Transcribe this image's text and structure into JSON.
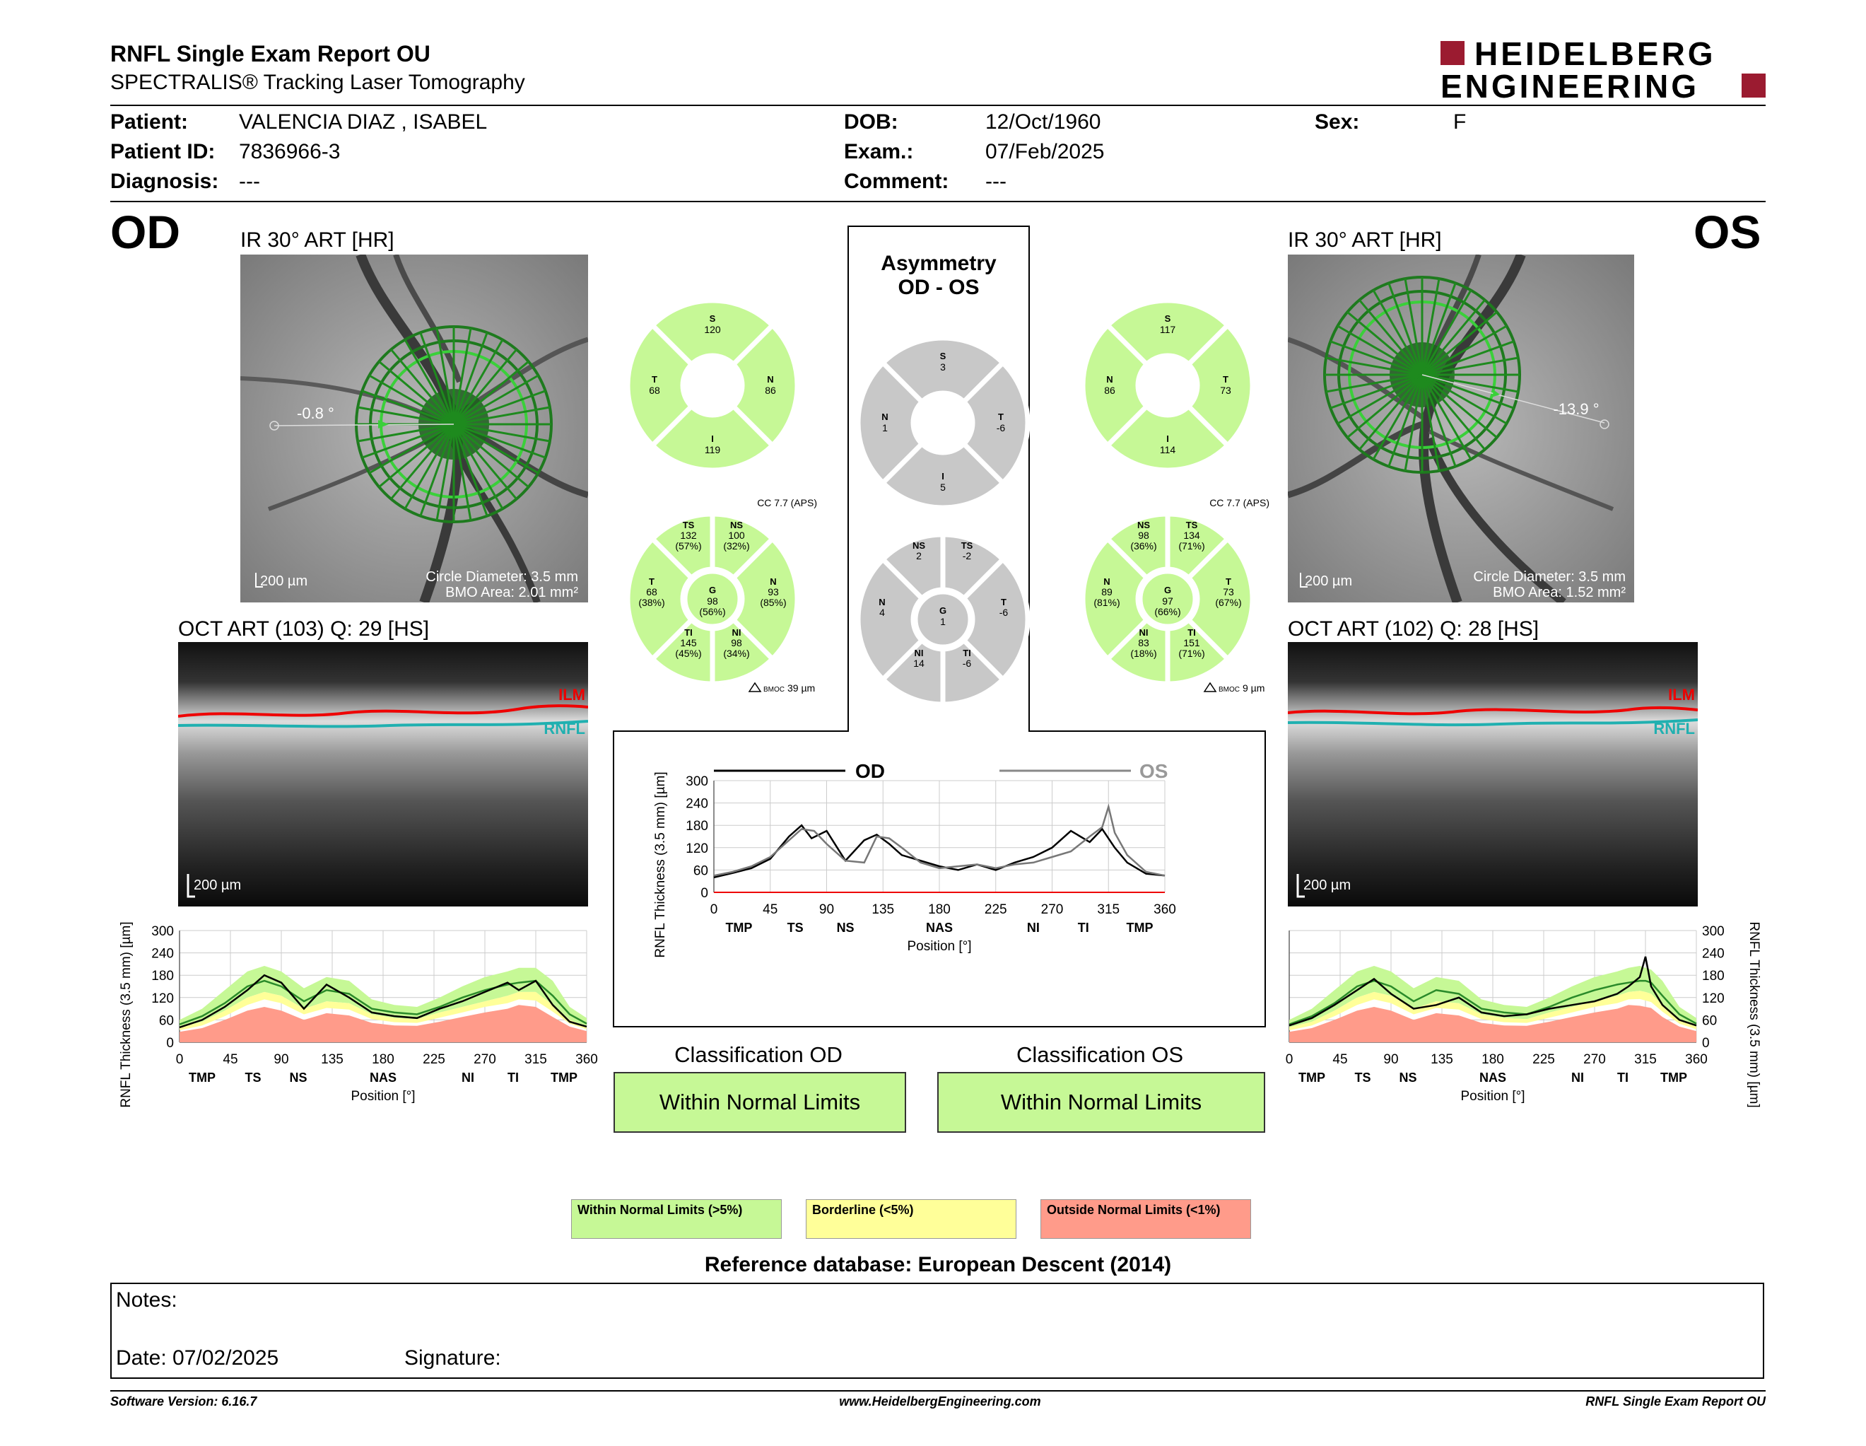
{
  "header": {
    "title": "RNFL Single Exam Report OU",
    "subtitle": "SPECTRALIS® Tracking Laser Tomography",
    "logo_line1": "HEIDELBERG",
    "logo_line2": "ENGINEERING",
    "brand_color": "#9b1b30"
  },
  "patient": {
    "name_label": "Patient:",
    "name": "VALENCIA DIAZ , ISABEL",
    "id_label": "Patient ID:",
    "id": "7836966-3",
    "diagnosis_label": "Diagnosis:",
    "diagnosis": "---",
    "dob_label": "DOB:",
    "dob": "12/Oct/1960",
    "exam_label": "Exam.:",
    "exam": "07/Feb/2025",
    "comment_label": "Comment:",
    "comment": "---",
    "sex_label": "Sex:",
    "sex": "F"
  },
  "od": {
    "eye": "OD",
    "ir_title": "IR 30° ART [HR]",
    "angle": "-0.8 °",
    "scale": "200 µm",
    "circle_diameter": "Circle Diameter: 3.5 mm",
    "bmo_area": "BMO Area: 2.01 mm²",
    "oct_title": "OCT ART (103) Q: 29 [HS]",
    "oct_scale": "200 µm",
    "ilm": "ILM",
    "rnfl": "RNFL",
    "classification_label": "Classification OD",
    "classification": "Within Normal Limits",
    "cc": "CC 7.7 (APS)",
    "bmoc": "39 µm",
    "quad": {
      "S": {
        "label": "S",
        "value": "120"
      },
      "T": {
        "label": "T",
        "value": "68"
      },
      "N": {
        "label": "N",
        "value": "86"
      },
      "I": {
        "label": "I",
        "value": "119"
      }
    },
    "sect": {
      "TS": {
        "label": "TS",
        "value": "132",
        "pct": "(57%)"
      },
      "NS": {
        "label": "NS",
        "value": "100",
        "pct": "(32%)"
      },
      "T": {
        "label": "T",
        "value": "68",
        "pct": "(38%)"
      },
      "G": {
        "label": "G",
        "value": "98",
        "pct": "(56%)"
      },
      "N": {
        "label": "N",
        "value": "93",
        "pct": "(85%)"
      },
      "TI": {
        "label": "TI",
        "value": "145",
        "pct": "(45%)"
      },
      "NI": {
        "label": "NI",
        "value": "98",
        "pct": "(34%)"
      }
    }
  },
  "os": {
    "eye": "OS",
    "ir_title": "IR 30° ART [HR]",
    "angle": "-13.9 °",
    "scale": "200 µm",
    "circle_diameter": "Circle Diameter: 3.5 mm",
    "bmo_area": "BMO Area: 1.52 mm²",
    "oct_title": "OCT ART (102) Q: 28 [HS]",
    "oct_scale": "200 µm",
    "ilm": "ILM",
    "rnfl": "RNFL",
    "classification_label": "Classification OS",
    "classification": "Within Normal Limits",
    "cc": "CC 7.7 (APS)",
    "bmoc": "9 µm",
    "quad": {
      "S": {
        "label": "S",
        "value": "117"
      },
      "N": {
        "label": "N",
        "value": "86"
      },
      "T": {
        "label": "T",
        "value": "73"
      },
      "I": {
        "label": "I",
        "value": "114"
      }
    },
    "sect": {
      "NS": {
        "label": "NS",
        "value": "98",
        "pct": "(36%)"
      },
      "TS": {
        "label": "TS",
        "value": "134",
        "pct": "(71%)"
      },
      "N": {
        "label": "N",
        "value": "89",
        "pct": "(81%)"
      },
      "G": {
        "label": "G",
        "value": "97",
        "pct": "(66%)"
      },
      "T": {
        "label": "T",
        "value": "73",
        "pct": "(67%)"
      },
      "NI": {
        "label": "NI",
        "value": "83",
        "pct": "(18%)"
      },
      "TI": {
        "label": "TI",
        "value": "151",
        "pct": "(71%)"
      }
    }
  },
  "asymmetry": {
    "title1": "Asymmetry",
    "title2": "OD - OS",
    "bmoc_prefix": "BMOC",
    "quad": {
      "S": {
        "label": "S",
        "value": "3"
      },
      "N": {
        "label": "N",
        "value": "1"
      },
      "T": {
        "label": "T",
        "value": "-6"
      },
      "I": {
        "label": "I",
        "value": "5"
      }
    },
    "sect": {
      "NS": {
        "label": "NS",
        "value": "2"
      },
      "TS": {
        "label": "TS",
        "value": "-2"
      },
      "N": {
        "label": "N",
        "value": "4"
      },
      "G": {
        "label": "G",
        "value": "1"
      },
      "T": {
        "label": "T",
        "value": "-6"
      },
      "NI": {
        "label": "NI",
        "value": "14"
      },
      "TI": {
        "label": "TI",
        "value": "-6"
      }
    }
  },
  "legend": {
    "normal": "Within Normal Limits (>5%)",
    "borderline": "Borderline (<5%)",
    "outside": "Outside Normal Limits (<1%)",
    "normal_color": "#c6f896",
    "borderline_color": "#ffff99",
    "outside_color": "#ff9b8a"
  },
  "reference": "Reference database: European Descent (2014)",
  "notes": {
    "label": "Notes:",
    "date": "Date: 07/02/2025",
    "signature": "Signature:"
  },
  "footer": {
    "version": "Software Version: 6.16.7",
    "url": "www.HeidelbergEngineering.com",
    "report": "RNFL Single Exam Report OU"
  },
  "chart_data": [
    {
      "type": "line",
      "name_key": "asymmetry",
      "xlabel": "Position [°]",
      "ylabel": "RNFL Thickness (3.5 mm) [µm]",
      "xticks": [
        0,
        45,
        90,
        135,
        180,
        225,
        270,
        315,
        360
      ],
      "yticks": [
        0,
        60,
        120,
        180,
        240,
        300
      ],
      "xlim": [
        0,
        360
      ],
      "ylim": [
        0,
        300
      ],
      "sector_labels": [
        "TMP",
        "TS",
        "NS",
        "NAS",
        "NI",
        "TI",
        "TMP"
      ],
      "sector_positions": [
        20,
        65,
        105,
        180,
        255,
        295,
        340
      ],
      "series": [
        {
          "name": "OD",
          "color": "#000000",
          "x": [
            0,
            15,
            30,
            45,
            60,
            70,
            78,
            90,
            105,
            120,
            130,
            140,
            150,
            165,
            180,
            195,
            210,
            225,
            240,
            255,
            270,
            285,
            300,
            310,
            320,
            330,
            345,
            360
          ],
          "y": [
            40,
            52,
            65,
            90,
            150,
            180,
            145,
            165,
            85,
            140,
            155,
            130,
            100,
            85,
            70,
            60,
            75,
            60,
            80,
            95,
            120,
            165,
            135,
            170,
            120,
            80,
            50,
            45
          ]
        },
        {
          "name": "OS",
          "color": "#777777",
          "x": [
            0,
            15,
            30,
            45,
            60,
            70,
            80,
            90,
            105,
            120,
            130,
            140,
            150,
            165,
            180,
            195,
            210,
            225,
            240,
            255,
            270,
            285,
            300,
            310,
            315,
            320,
            330,
            345,
            360
          ],
          "y": [
            45,
            55,
            70,
            95,
            140,
            170,
            165,
            130,
            85,
            80,
            150,
            145,
            120,
            80,
            65,
            70,
            75,
            65,
            75,
            80,
            95,
            110,
            150,
            175,
            230,
            160,
            100,
            55,
            45
          ]
        }
      ]
    },
    {
      "type": "area",
      "name_key": "od_profile",
      "xlabel": "Position [°]",
      "ylabel": "RNFL Thickness (3.5 mm) [µm]",
      "xticks": [
        0,
        45,
        90,
        135,
        180,
        225,
        270,
        315,
        360
      ],
      "yticks": [
        0,
        60,
        120,
        180,
        240,
        300
      ],
      "xlim": [
        0,
        360
      ],
      "ylim": [
        0,
        300
      ],
      "sector_labels": [
        "TMP",
        "TS",
        "NS",
        "NAS",
        "NI",
        "TI",
        "TMP"
      ],
      "sector_positions": [
        20,
        65,
        105,
        180,
        255,
        295,
        340
      ],
      "x": [
        0,
        20,
        40,
        60,
        75,
        90,
        110,
        130,
        150,
        170,
        190,
        210,
        230,
        250,
        270,
        290,
        300,
        315,
        330,
        345,
        360
      ],
      "normal_upper": [
        60,
        90,
        140,
        190,
        205,
        190,
        145,
        175,
        165,
        115,
        100,
        95,
        120,
        150,
        175,
        190,
        200,
        200,
        165,
        95,
        65
      ],
      "normal_lower": [
        40,
        55,
        85,
        120,
        135,
        125,
        90,
        110,
        105,
        75,
        65,
        62,
        80,
        95,
        110,
        125,
        135,
        135,
        100,
        60,
        42
      ],
      "border_lower": [
        32,
        45,
        70,
        100,
        115,
        105,
        75,
        92,
        88,
        62,
        54,
        52,
        66,
        80,
        95,
        105,
        115,
        112,
        82,
        50,
        35
      ],
      "outside_upper": [
        28,
        38,
        60,
        85,
        95,
        85,
        60,
        78,
        72,
        52,
        45,
        44,
        55,
        68,
        80,
        90,
        100,
        95,
        68,
        42,
        30
      ],
      "mean": [
        48,
        70,
        105,
        150,
        165,
        150,
        110,
        140,
        130,
        90,
        80,
        75,
        95,
        120,
        140,
        155,
        160,
        165,
        125,
        75,
        50
      ],
      "values": [
        40,
        60,
        95,
        140,
        180,
        160,
        90,
        155,
        120,
        80,
        70,
        65,
        90,
        110,
        135,
        160,
        140,
        165,
        100,
        55,
        42
      ]
    },
    {
      "type": "area",
      "name_key": "os_profile",
      "xlabel": "Position [°]",
      "ylabel": "RNFL Thickness (3.5 mm) [µm]",
      "xticks": [
        0,
        45,
        90,
        135,
        180,
        225,
        270,
        315,
        360
      ],
      "yticks": [
        0,
        60,
        120,
        180,
        240,
        300
      ],
      "xlim": [
        0,
        360
      ],
      "ylim": [
        0,
        300
      ],
      "sector_labels": [
        "TMP",
        "TS",
        "NS",
        "NAS",
        "NI",
        "TI",
        "TMP"
      ],
      "sector_positions": [
        20,
        65,
        105,
        180,
        255,
        295,
        340
      ],
      "x": [
        0,
        20,
        40,
        60,
        75,
        90,
        110,
        130,
        150,
        170,
        190,
        210,
        230,
        250,
        270,
        290,
        300,
        310,
        315,
        320,
        330,
        345,
        360
      ],
      "normal_upper": [
        60,
        90,
        140,
        190,
        205,
        190,
        145,
        175,
        165,
        115,
        100,
        95,
        120,
        150,
        175,
        190,
        200,
        205,
        200,
        195,
        165,
        95,
        65
      ],
      "normal_lower": [
        40,
        55,
        85,
        120,
        135,
        125,
        90,
        110,
        105,
        75,
        65,
        62,
        80,
        95,
        110,
        125,
        135,
        138,
        135,
        130,
        100,
        60,
        42
      ],
      "border_lower": [
        32,
        45,
        70,
        100,
        115,
        105,
        75,
        92,
        88,
        62,
        54,
        52,
        66,
        80,
        95,
        105,
        115,
        116,
        112,
        108,
        82,
        50,
        35
      ],
      "outside_upper": [
        28,
        38,
        60,
        85,
        95,
        85,
        60,
        78,
        72,
        52,
        45,
        44,
        55,
        68,
        80,
        90,
        100,
        98,
        95,
        92,
        68,
        42,
        30
      ],
      "mean": [
        48,
        70,
        105,
        150,
        165,
        150,
        110,
        140,
        130,
        90,
        80,
        75,
        95,
        120,
        140,
        155,
        160,
        165,
        165,
        160,
        125,
        75,
        50
      ],
      "values": [
        45,
        65,
        100,
        140,
        170,
        130,
        90,
        100,
        120,
        80,
        70,
        75,
        90,
        100,
        110,
        130,
        150,
        175,
        230,
        150,
        100,
        60,
        45
      ]
    }
  ]
}
